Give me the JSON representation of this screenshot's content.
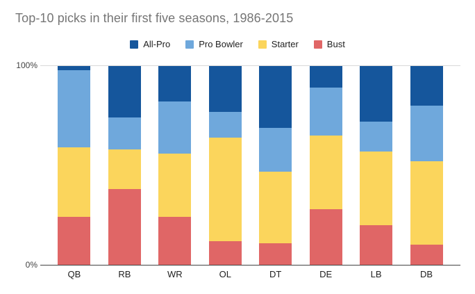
{
  "title": "Top-10 picks in their first five seasons, 1986-2015",
  "axis": {
    "y_top_label": "100%",
    "y_bottom_label": "0%"
  },
  "legend": [
    {
      "label": "All-Pro",
      "color": "#15569C"
    },
    {
      "label": "Pro Bowler",
      "color": "#6FA8DC"
    },
    {
      "label": "Starter",
      "color": "#FBD55C"
    },
    {
      "label": "Bust",
      "color": "#E06666"
    }
  ],
  "chart_data": {
    "type": "bar",
    "stacked": true,
    "unit": "percent",
    "title": "Top-10 picks in their first five seasons, 1986-2015",
    "xlabel": "",
    "ylabel": "",
    "ylim": [
      0,
      100
    ],
    "grid": "top-gridline-only",
    "legend_position": "top-center",
    "categories": [
      "QB",
      "RB",
      "WR",
      "OL",
      "DT",
      "DE",
      "LB",
      "DB"
    ],
    "series": [
      {
        "name": "All-Pro",
        "color": "#15569C",
        "values": [
          2,
          26,
          18,
          23,
          31,
          11,
          28,
          20
        ]
      },
      {
        "name": "Pro Bowler",
        "color": "#6FA8DC",
        "values": [
          39,
          16,
          26,
          13,
          22,
          24,
          15,
          28
        ]
      },
      {
        "name": "Starter",
        "color": "#FBD55C",
        "values": [
          35,
          20,
          32,
          52,
          36,
          37,
          37,
          42
        ]
      },
      {
        "name": "Bust",
        "color": "#E06666",
        "values": [
          24,
          38,
          24,
          12,
          11,
          28,
          20,
          10
        ]
      }
    ]
  }
}
